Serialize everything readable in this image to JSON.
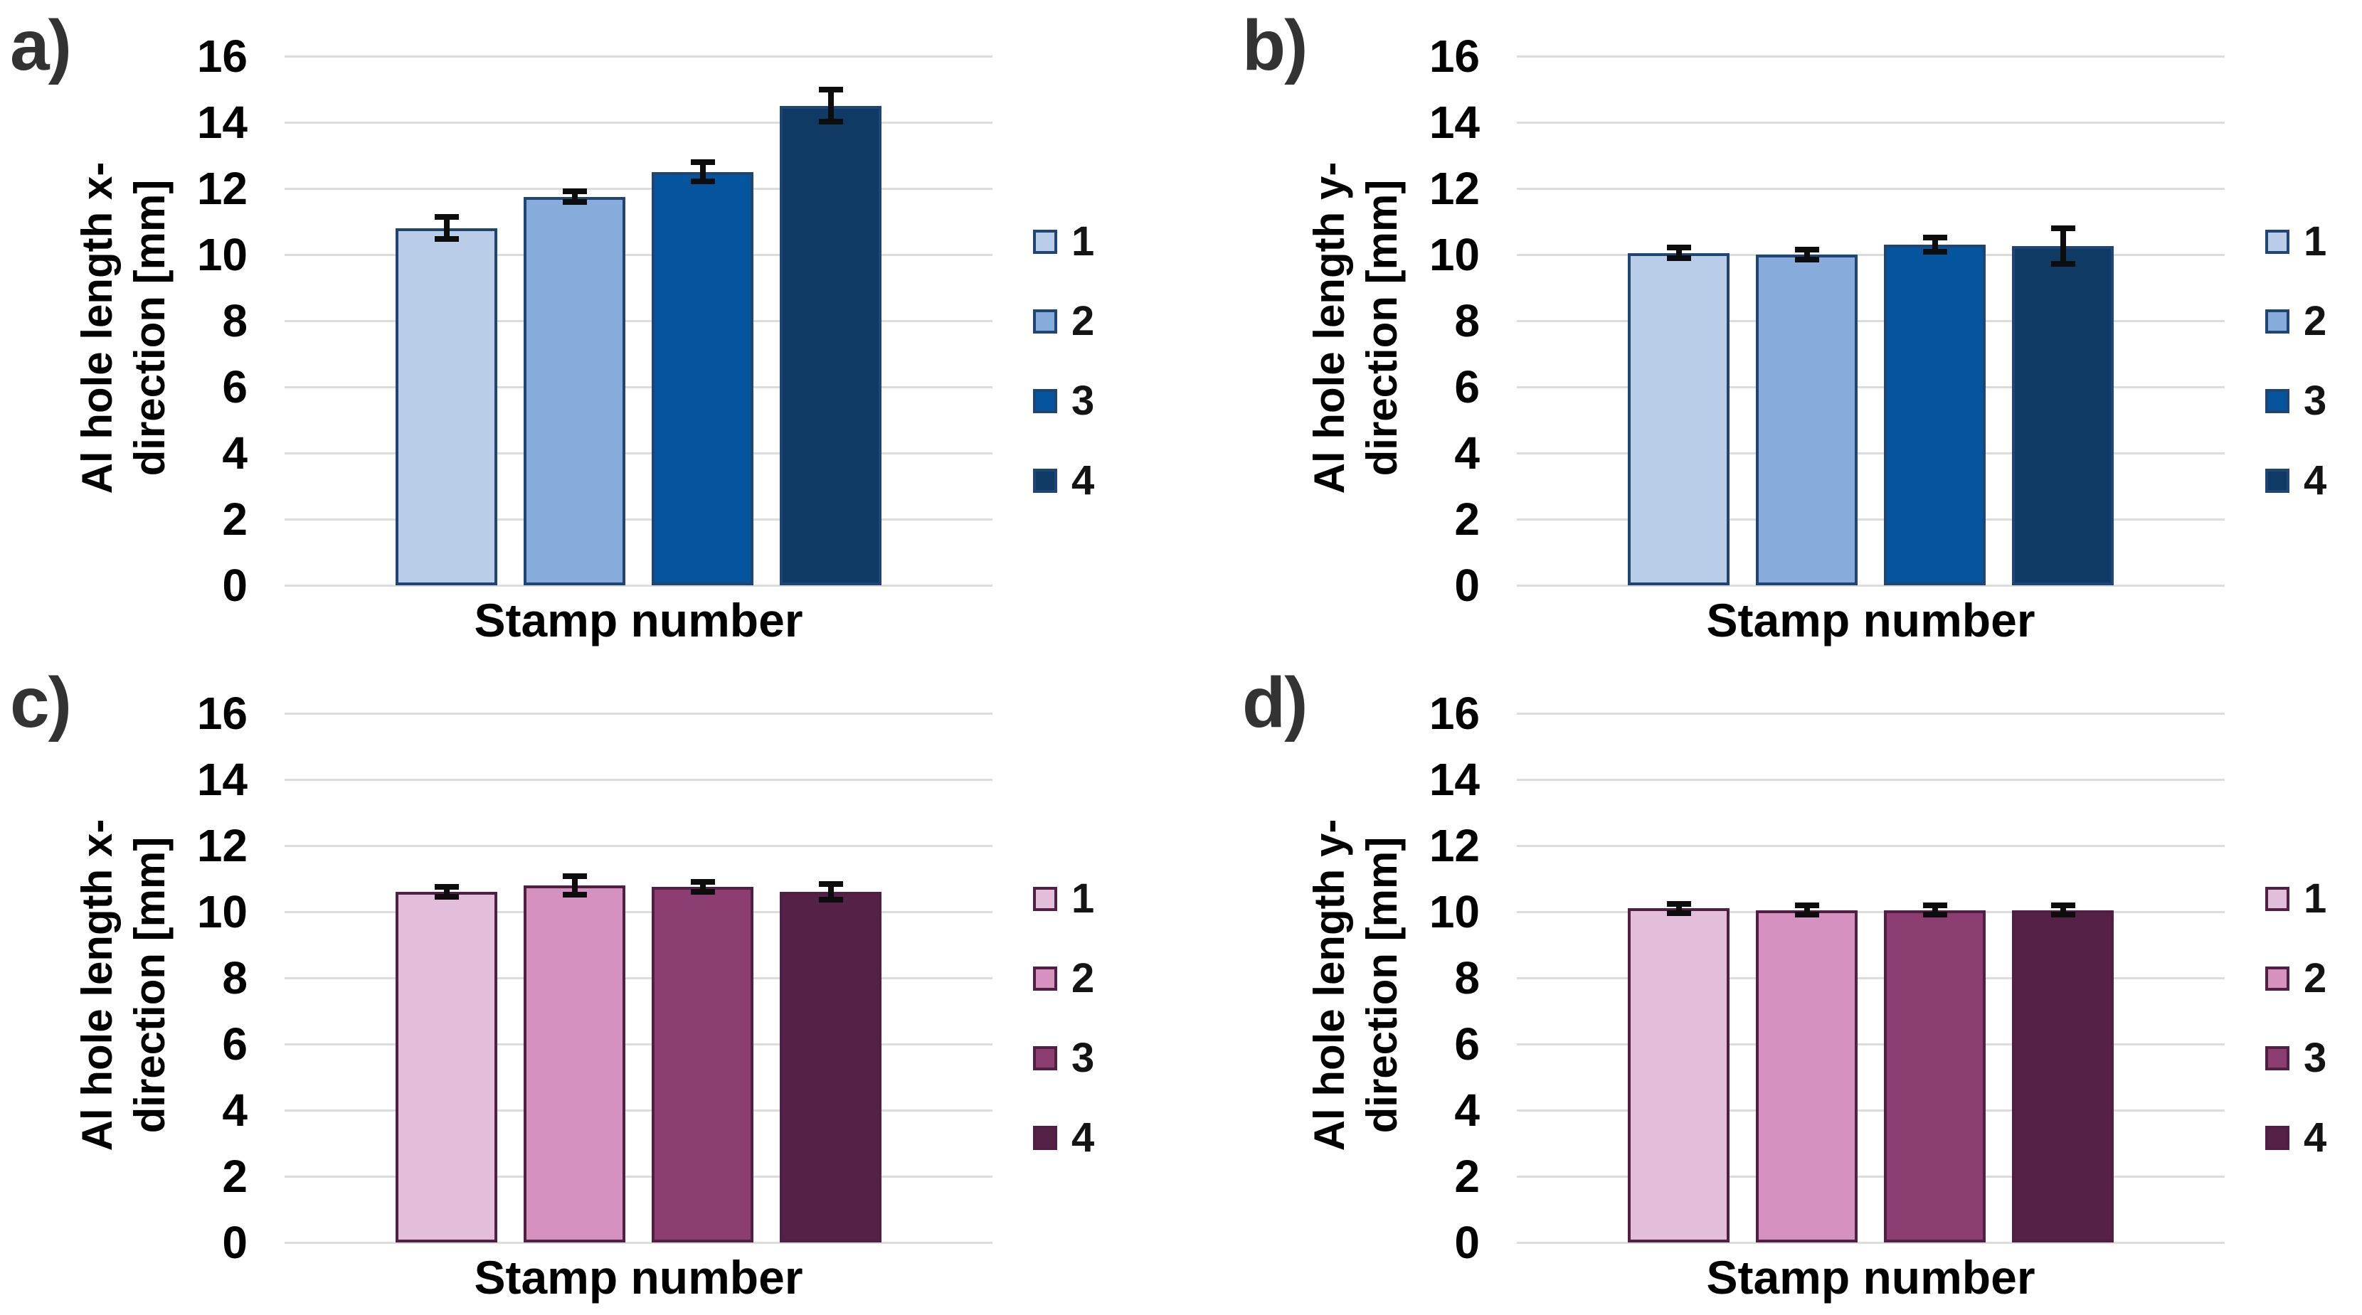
{
  "figure": {
    "background": "#ffffff",
    "y_ticks": [
      16,
      14,
      12,
      10,
      8,
      6,
      4,
      2,
      0
    ],
    "legend_labels": [
      "1",
      "2",
      "3",
      "4"
    ],
    "gridline_color": "#dcdcdc",
    "error_bar_color": "#0d0d0d"
  },
  "palettes": {
    "blue": {
      "fills": [
        "#b9cde8",
        "#87abdb",
        "#04559e",
        "#0e3a63"
      ],
      "border": "#1f4574"
    },
    "plum": {
      "fills": [
        "#e3bedb",
        "#d592c1",
        "#8c3d72",
        "#552147"
      ],
      "border": "#511e44"
    }
  },
  "chart_data": [
    {
      "type": "bar",
      "panel_label": "a)",
      "ylabel": "Al hole length x-direction [mm]",
      "ylabel_lines": [
        "Al hole length x-",
        "direction [mm]"
      ],
      "xlabel": "Stamp number",
      "categories": [
        "1",
        "2",
        "3",
        "4"
      ],
      "values": [
        10.8,
        11.75,
        12.5,
        14.5
      ],
      "errors": [
        0.25,
        0.07,
        0.2,
        0.4
      ],
      "palette": "blue",
      "ylim": [
        0,
        16
      ],
      "legend_position": "right",
      "grid": true
    },
    {
      "type": "bar",
      "panel_label": "b)",
      "ylabel": "Al hole length y-direction [mm]",
      "ylabel_lines": [
        "Al hole length y-",
        "direction [mm]"
      ],
      "xlabel": "Stamp number",
      "categories": [
        "1",
        "2",
        "3",
        "4"
      ],
      "values": [
        10.05,
        10.0,
        10.3,
        10.25
      ],
      "errors": [
        0.07,
        0.07,
        0.12,
        0.45
      ],
      "palette": "blue",
      "ylim": [
        0,
        16
      ],
      "legend_position": "right",
      "grid": true
    },
    {
      "type": "bar",
      "panel_label": "c)",
      "ylabel": "Al hole length x-direction [mm]",
      "ylabel_lines": [
        "Al hole length x-",
        "direction [mm]"
      ],
      "xlabel": "Stamp number",
      "categories": [
        "1",
        "2",
        "3",
        "4"
      ],
      "values": [
        10.6,
        10.8,
        10.75,
        10.6
      ],
      "errors": [
        0.06,
        0.2,
        0.06,
        0.15
      ],
      "palette": "plum",
      "ylim": [
        0,
        16
      ],
      "legend_position": "right",
      "grid": true
    },
    {
      "type": "bar",
      "panel_label": "d)",
      "ylabel": "Al hole length y-direction [mm]",
      "ylabel_lines": [
        "Al hole length y-",
        "direction [mm]"
      ],
      "xlabel": "Stamp number",
      "categories": [
        "1",
        "2",
        "3",
        "4"
      ],
      "values": [
        10.1,
        10.05,
        10.05,
        10.05
      ],
      "errors": [
        0.06,
        0.06,
        0.06,
        0.06
      ],
      "palette": "plum",
      "ylim": [
        0,
        16
      ],
      "legend_position": "right",
      "grid": true
    }
  ]
}
